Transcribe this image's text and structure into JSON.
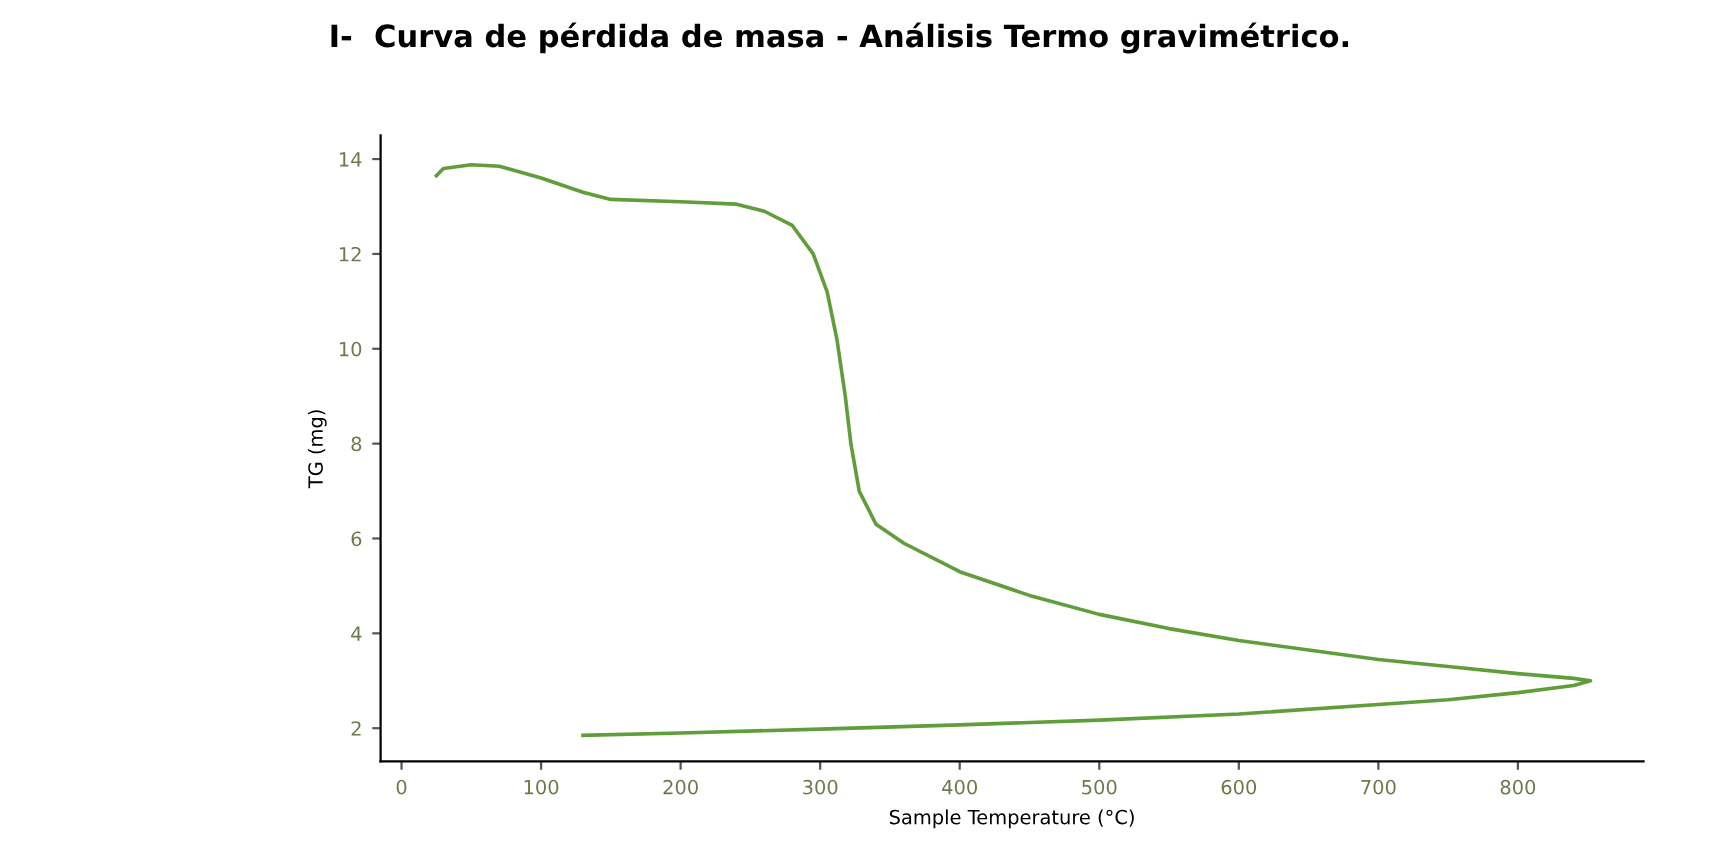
{
  "chart_data": {
    "type": "line",
    "title": "I-  Curva de pérdida de masa - Análisis Termo gravimétrico.",
    "xlabel": "Sample Temperature (°C)",
    "ylabel": "TG (mg)",
    "xlim": [
      -15,
      890
    ],
    "xticks": [
      0,
      100,
      200,
      300,
      400,
      500,
      600,
      700,
      800
    ],
    "ylim": [
      1.3,
      14.5
    ],
    "yticks": [
      2,
      4,
      6,
      8,
      10,
      12,
      14
    ],
    "grid": false,
    "legend": false,
    "marker": "none",
    "line_style": "solid",
    "series": [
      {
        "color": "#5f9e3a",
        "x": [
          25,
          30,
          50,
          70,
          100,
          130,
          150,
          200,
          240,
          260,
          280,
          295,
          305,
          312,
          318,
          322,
          328,
          340,
          360,
          400,
          450,
          500,
          550,
          600,
          650,
          700,
          750,
          800,
          840,
          852,
          840,
          800,
          750,
          700,
          600,
          500,
          400,
          300,
          200,
          130
        ],
        "values": [
          13.65,
          13.8,
          13.88,
          13.85,
          13.6,
          13.3,
          13.15,
          13.1,
          13.05,
          12.9,
          12.6,
          12.0,
          11.2,
          10.2,
          9.0,
          8.0,
          7.0,
          6.3,
          5.9,
          5.3,
          4.8,
          4.4,
          4.1,
          3.85,
          3.65,
          3.45,
          3.3,
          3.15,
          3.05,
          3.0,
          2.9,
          2.75,
          2.6,
          2.5,
          2.3,
          2.17,
          2.07,
          1.98,
          1.9,
          1.85
        ]
      }
    ]
  }
}
